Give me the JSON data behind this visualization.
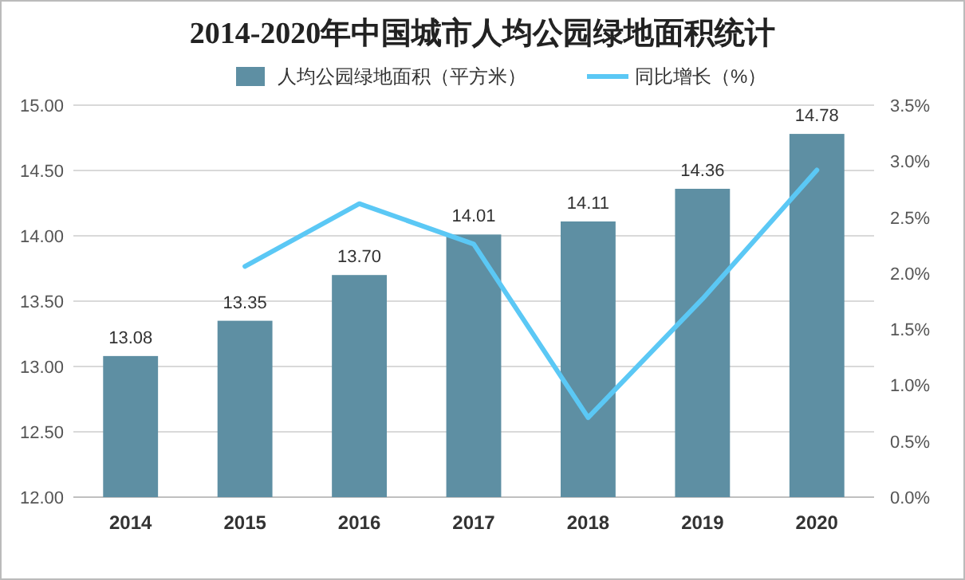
{
  "chart_data": {
    "type": "bar",
    "title": "2014-2020年中国城市人均公园绿地面积统计",
    "categories": [
      "2014",
      "2015",
      "2016",
      "2017",
      "2018",
      "2019",
      "2020"
    ],
    "series": [
      {
        "name": "人均公园绿地面积（平方米）",
        "color": "#5e8fa3",
        "values": [
          13.08,
          13.35,
          13.7,
          14.01,
          14.11,
          14.36,
          14.78
        ],
        "value_labels": [
          "13.08",
          "13.35",
          "13.70",
          "14.01",
          "14.11",
          "14.36",
          "14.78"
        ]
      },
      {
        "name": "同比增长（%）",
        "type": "line",
        "axis": "y2",
        "color": "#5bc8f5",
        "values": [
          null,
          2.06,
          2.62,
          2.26,
          0.71,
          1.77,
          2.92
        ]
      }
    ],
    "ylim": [
      12,
      15
    ],
    "yticks": [
      {
        "value": 12,
        "label": "12.00"
      },
      {
        "value": 12.5,
        "label": "12.50"
      },
      {
        "value": 13,
        "label": "13.00"
      },
      {
        "value": 13.5,
        "label": "13.50"
      },
      {
        "value": 14,
        "label": "14.00"
      },
      {
        "value": 14.5,
        "label": "14.50"
      },
      {
        "value": 15,
        "label": "15.00"
      }
    ],
    "y2lim": [
      0,
      3.5
    ],
    "y2ticks": [
      {
        "value": 0,
        "label": "0.0%"
      },
      {
        "value": 0.5,
        "label": "0.5%"
      },
      {
        "value": 1,
        "label": "1.0%"
      },
      {
        "value": 1.5,
        "label": "1.5%"
      },
      {
        "value": 2,
        "label": "2.0%"
      },
      {
        "value": 2.5,
        "label": "2.5%"
      },
      {
        "value": 3,
        "label": "3.0%"
      },
      {
        "value": 3.5,
        "label": "3.5%"
      }
    ],
    "grid": "y",
    "legend": "top"
  }
}
